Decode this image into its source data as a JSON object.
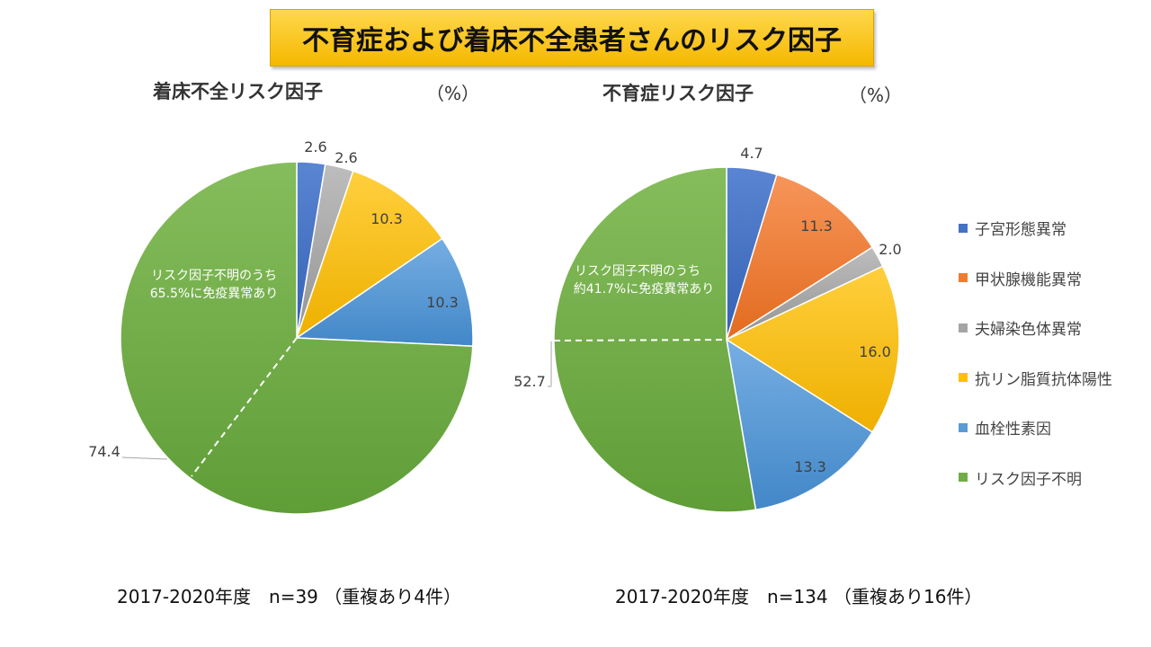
{
  "title": "不育症および着床不全患者さんのリスク因子",
  "legend": [
    {
      "label": "子宮形態異常",
      "color": "#4472c4"
    },
    {
      "label": "甲状腺機能異常",
      "color": "#ed7d31"
    },
    {
      "label": "夫婦染色体異常",
      "color": "#a5a5a5"
    },
    {
      "label": "抗リン脂質抗体陽性",
      "color": "#ffc000"
    },
    {
      "label": "血栓性素因",
      "color": "#5b9bd5"
    },
    {
      "label": "リスク因子不明",
      "color": "#70ad47"
    }
  ],
  "left": {
    "subtitle": "着床不全リスク因子",
    "unit": "（%）",
    "note_line1": "リスク因子不明のうち",
    "note_line2": "65.5%に免疫異常あり",
    "footer": "2017-2020年度　n=39 （重複あり4件）"
  },
  "right": {
    "subtitle": "不育症リスク因子",
    "unit": "（%）",
    "note_line1": "リスク因子不明のうち",
    "note_line2": "約41.7%に免疫異常あり",
    "footer": "2017-2020年度　n=134 （重複あり16件）"
  },
  "chart_data": [
    {
      "type": "pie",
      "title": "着床不全リスク因子",
      "unit": "%",
      "slices": [
        {
          "label": "子宮形態異常",
          "value": 2.6,
          "color": "#4472c4"
        },
        {
          "label": "夫婦染色体異常",
          "value": 2.6,
          "color": "#a5a5a5"
        },
        {
          "label": "抗リン脂質抗体陽性",
          "value": 10.3,
          "color": "#ffc000"
        },
        {
          "label": "血栓性素因",
          "value": 10.3,
          "color": "#5b9bd5"
        },
        {
          "label": "リスク因子不明",
          "value": 74.4,
          "color": "#70ad47"
        }
      ]
    },
    {
      "type": "pie",
      "title": "不育症リスク因子",
      "unit": "%",
      "slices": [
        {
          "label": "子宮形態異常",
          "value": 4.7,
          "color": "#4472c4"
        },
        {
          "label": "甲状腺機能異常",
          "value": 11.3,
          "color": "#ed7d31"
        },
        {
          "label": "夫婦染色体異常",
          "value": 2.0,
          "color": "#a5a5a5"
        },
        {
          "label": "抗リン脂質抗体陽性",
          "value": 16.0,
          "color": "#ffc000"
        },
        {
          "label": "血栓性素因",
          "value": 13.3,
          "color": "#5b9bd5"
        },
        {
          "label": "リスク因子不明",
          "value": 52.7,
          "color": "#70ad47"
        }
      ]
    }
  ]
}
